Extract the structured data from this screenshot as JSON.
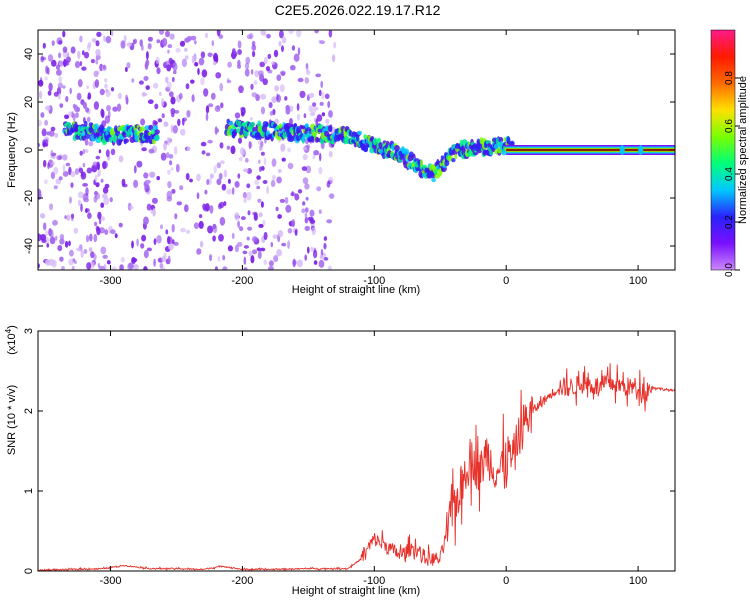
{
  "title": "C2E5.2026.022.19.17.R12",
  "colors": {
    "series": "#e8302a",
    "trace": "#1a1a1a",
    "scatter": "#7a1fe6",
    "colorbar_stops": [
      "#cc88ff",
      "#7a10ff",
      "#2a22ff",
      "#00c8ff",
      "#00ff7a",
      "#7aff00",
      "#ffe000",
      "#ff6a00",
      "#ff1a00",
      "#ff1a8a"
    ]
  },
  "chart_data": [
    {
      "type": "heatmap",
      "xlabel": "Height of straight line (km)",
      "ylabel": "Frequency (Hz)",
      "xlim": [
        -355,
        128
      ],
      "ylim": [
        -50,
        50
      ],
      "xticks": [
        -300,
        -200,
        -100,
        0,
        100
      ],
      "yticks": [
        -40,
        -20,
        0,
        20,
        40
      ],
      "colorbar": {
        "label": "Normalized spectral amplitude",
        "range": [
          0,
          1
        ],
        "ticks": [
          "0.0",
          "0.2",
          "0.4",
          "0.6",
          "0.8"
        ]
      },
      "ridge": {
        "x": [
          -320,
          -300,
          -280,
          -265,
          -210,
          -180,
          -150,
          -120,
          -100,
          -80,
          -65,
          -55,
          -45,
          -35,
          -20,
          0,
          5,
          50,
          90,
          128
        ],
        "y": [
          8,
          6,
          7,
          6,
          9,
          8,
          7,
          6,
          2,
          -2,
          -8,
          -10,
          -3,
          0,
          1,
          2,
          0,
          0,
          0,
          0
        ]
      }
    },
    {
      "type": "line",
      "xlabel": "Height of straight line (km)",
      "ylabel": "SNR (10 * v/v)",
      "y_multiplier": "(x10",
      "y_multiplier_exp": "4",
      "xlim": [
        -355,
        128
      ],
      "ylim": [
        0,
        3
      ],
      "xticks": [
        -300,
        -200,
        -100,
        0,
        100
      ],
      "yticks": [
        0,
        1,
        2,
        3
      ],
      "series": [
        {
          "x": [
            -355,
            -330,
            -305,
            -290,
            -270,
            -250,
            -230,
            -215,
            -200,
            -180,
            -150,
            -120,
            -110,
            -100,
            -90,
            -80,
            -70,
            -60,
            -50,
            -45,
            -40,
            -35,
            -30,
            -25,
            -20,
            -15,
            -10,
            -5,
            0,
            5,
            10,
            15,
            20,
            30,
            40,
            50,
            60,
            70,
            80,
            90,
            100,
            105,
            110,
            120,
            128
          ],
          "y": [
            0.01,
            0.02,
            0.03,
            0.07,
            0.03,
            0.03,
            0.02,
            0.06,
            0.02,
            0.02,
            0.03,
            0.03,
            0.15,
            0.4,
            0.3,
            0.2,
            0.3,
            0.15,
            0.15,
            0.5,
            0.8,
            1.0,
            1.3,
            1.4,
            1.2,
            1.5,
            1.3,
            1.25,
            1.45,
            1.4,
            1.7,
            1.9,
            2.0,
            2.15,
            2.3,
            2.3,
            2.35,
            2.3,
            2.35,
            2.3,
            2.3,
            2.25,
            2.3,
            2.27,
            2.25
          ]
        }
      ]
    }
  ]
}
